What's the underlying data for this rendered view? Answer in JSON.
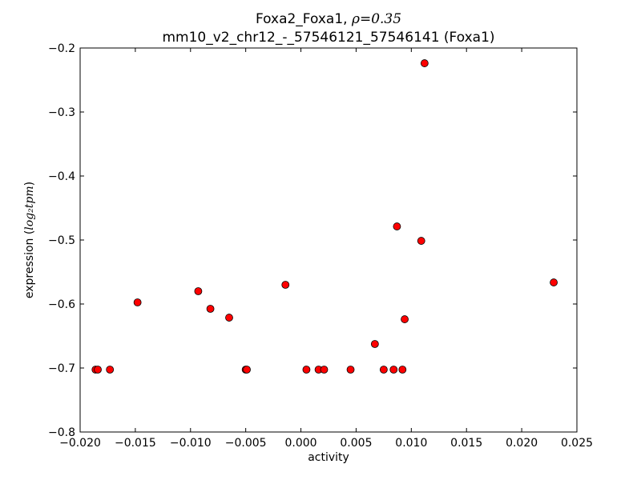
{
  "chart_data": {
    "type": "scatter",
    "title_line1_prefix": "Foxa2_Foxa1, ",
    "title_line1_math": "ρ=0.35",
    "title_line2": "mm10_v2_chr12_-_57546121_57546141 (Foxa1)",
    "xlabel": "activity",
    "ylabel_prefix": "expression (",
    "ylabel_math": "log₂tpm",
    "ylabel_suffix": ")",
    "xlim": [
      -0.02,
      0.025
    ],
    "ylim": [
      -0.8,
      -0.2
    ],
    "x_ticks": [
      -0.02,
      -0.015,
      -0.01,
      -0.005,
      0.0,
      0.005,
      0.01,
      0.015,
      0.02,
      0.025
    ],
    "x_tick_labels": [
      "−0.020",
      "−0.015",
      "−0.010",
      "−0.005",
      "0.000",
      "0.005",
      "0.010",
      "0.015",
      "0.020",
      "0.025"
    ],
    "y_ticks": [
      -0.8,
      -0.7,
      -0.6,
      -0.5,
      -0.4,
      -0.3,
      -0.2
    ],
    "y_tick_labels": [
      "−0.8",
      "−0.7",
      "−0.6",
      "−0.5",
      "−0.4",
      "−0.3",
      "−0.2"
    ],
    "grid": false,
    "marker_color": "#ff0000",
    "marker_edge_color": "#000000",
    "points": [
      {
        "x": -0.0186,
        "y": -0.7025
      },
      {
        "x": -0.0184,
        "y": -0.7025
      },
      {
        "x": -0.0173,
        "y": -0.7025
      },
      {
        "x": -0.0148,
        "y": -0.5975
      },
      {
        "x": -0.0093,
        "y": -0.58
      },
      {
        "x": -0.0082,
        "y": -0.6075
      },
      {
        "x": -0.0065,
        "y": -0.6213
      },
      {
        "x": -0.005,
        "y": -0.7025
      },
      {
        "x": -0.0049,
        "y": -0.7025
      },
      {
        "x": -0.0014,
        "y": -0.57
      },
      {
        "x": 0.0005,
        "y": -0.7025
      },
      {
        "x": 0.0016,
        "y": -0.7025
      },
      {
        "x": 0.0021,
        "y": -0.7025
      },
      {
        "x": 0.0045,
        "y": -0.7025
      },
      {
        "x": 0.0067,
        "y": -0.6625
      },
      {
        "x": 0.0075,
        "y": -0.7025
      },
      {
        "x": 0.0084,
        "y": -0.7025
      },
      {
        "x": 0.0087,
        "y": -0.4788
      },
      {
        "x": 0.0092,
        "y": -0.7025
      },
      {
        "x": 0.0094,
        "y": -0.6238
      },
      {
        "x": 0.0109,
        "y": -0.5013
      },
      {
        "x": 0.0112,
        "y": -0.2238
      },
      {
        "x": 0.0229,
        "y": -0.5663
      }
    ]
  }
}
